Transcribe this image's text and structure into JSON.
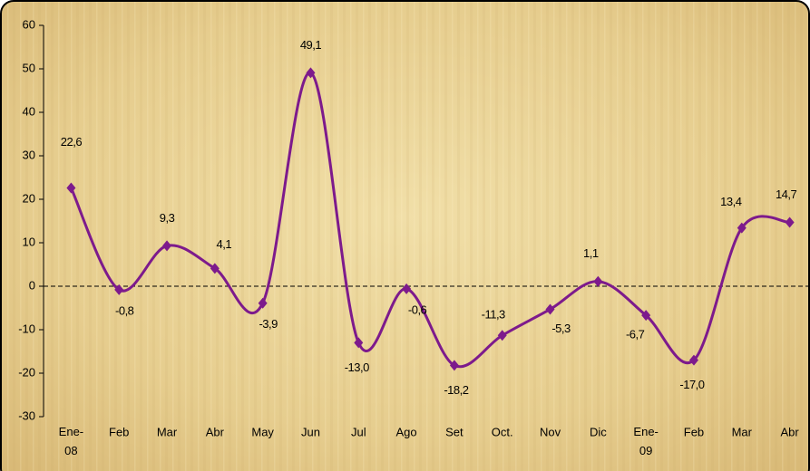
{
  "chart_data": {
    "type": "line",
    "categories": [
      "Ene-08",
      "Feb",
      "Mar",
      "Abr",
      "May",
      "Jun",
      "Jul",
      "Ago",
      "Set",
      "Oct.",
      "Nov",
      "Dic",
      "Ene-09",
      "Feb",
      "Mar",
      "Abr"
    ],
    "series": [
      {
        "color": "#7d1a8c",
        "values": [
          22.6,
          -0.8,
          9.3,
          4.1,
          -3.9,
          49.1,
          -13.0,
          -0.6,
          -18.2,
          -11.3,
          -5.3,
          1.1,
          -6.7,
          -17.0,
          13.4,
          14.7
        ],
        "value_labels": [
          "22,6",
          "-0,8",
          "9,3",
          "4,1",
          "-3,9",
          "49,1",
          "-13,0",
          "-0,6",
          "-18,2",
          "-11,3",
          "-5,3",
          "1,1",
          "-6,7",
          "-17,0",
          "13,4",
          "14,7"
        ]
      }
    ],
    "ylim": [
      -30,
      60
    ],
    "yticks": [
      -30,
      -20,
      -10,
      0,
      10,
      20,
      30,
      40,
      50,
      60
    ]
  }
}
